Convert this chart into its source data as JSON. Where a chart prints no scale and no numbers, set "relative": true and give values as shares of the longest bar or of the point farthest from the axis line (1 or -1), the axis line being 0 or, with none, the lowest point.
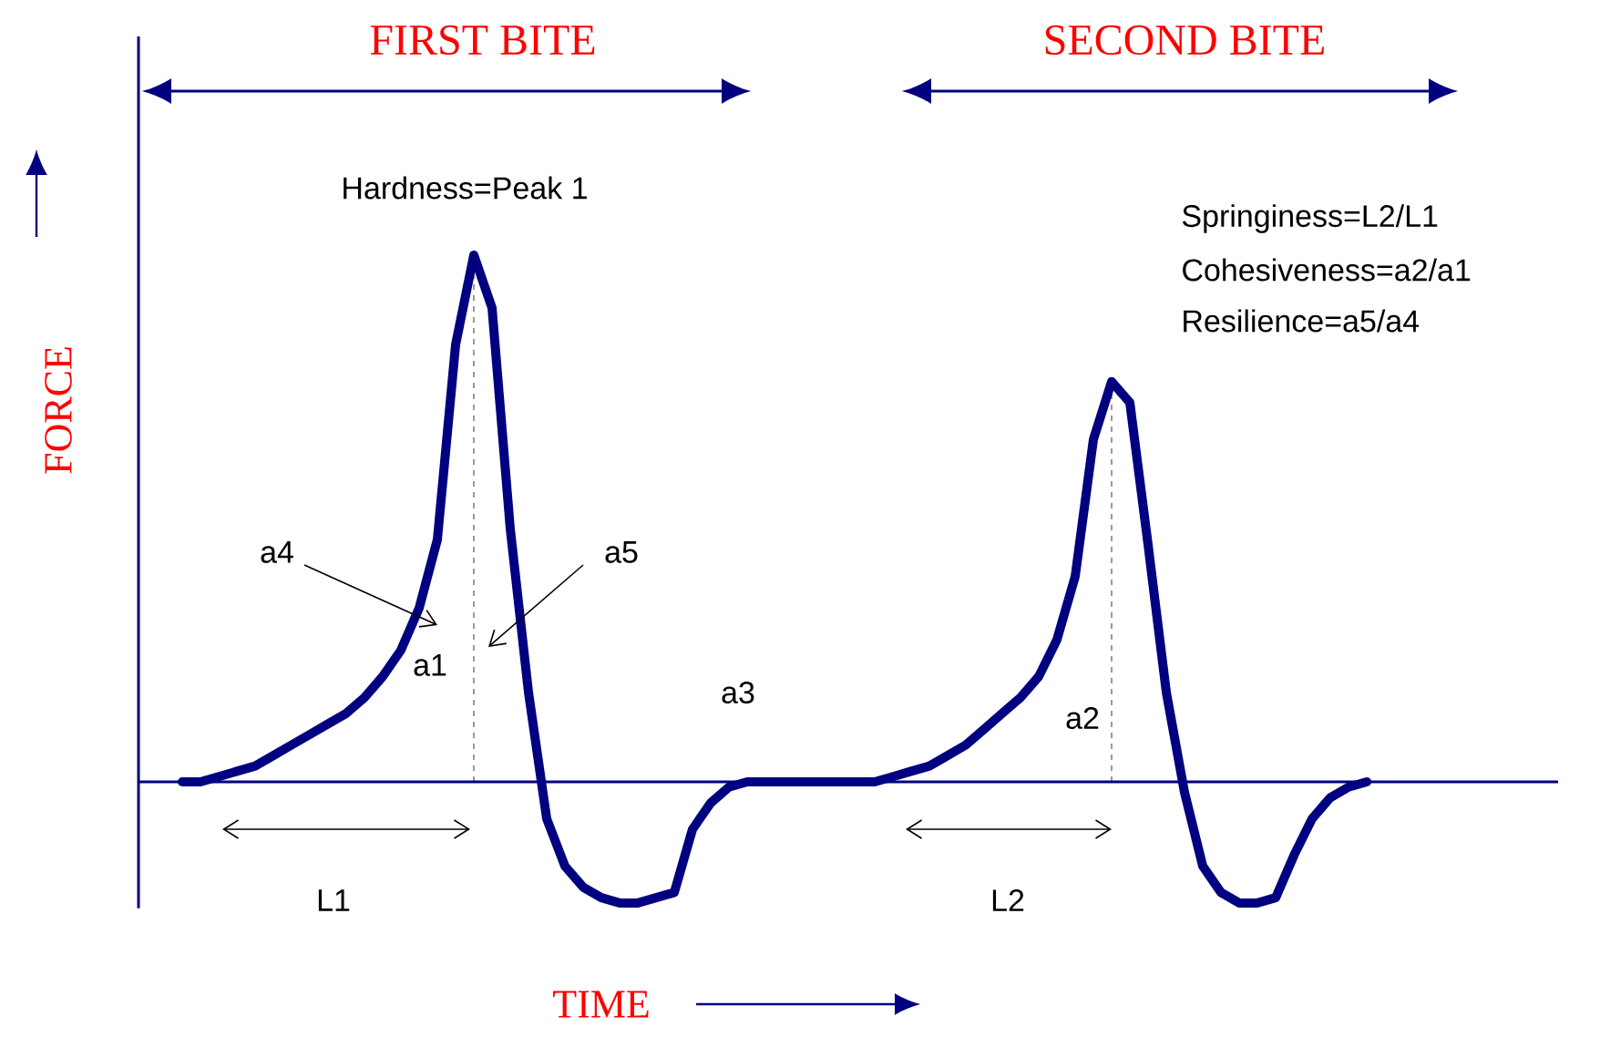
{
  "chart_data": {
    "type": "line",
    "relative": true,
    "xlabel": "TIME",
    "ylabel": "FORCE",
    "categories": [
      null,
      null,
      null,
      null,
      null,
      null,
      null,
      null,
      null,
      null,
      null,
      null,
      null,
      null,
      null,
      null,
      null,
      null,
      null,
      null,
      null,
      null,
      null,
      null,
      null,
      null,
      null,
      null,
      null,
      null,
      null,
      null,
      null,
      null,
      null,
      null,
      null,
      null,
      null,
      null,
      null,
      null,
      null,
      null,
      null,
      null,
      null,
      null,
      null,
      null,
      null,
      null,
      null,
      null,
      null,
      null,
      null,
      null,
      null,
      null,
      null,
      null,
      null,
      null,
      null,
      null
    ],
    "series": [
      {
        "color": "#000080",
        "values": [
          0,
          0,
          0.01,
          0.02,
          0.03,
          0.05,
          0.07,
          0.09,
          0.11,
          0.13,
          0.16,
          0.2,
          0.25,
          0.33,
          0.46,
          0.83,
          1,
          0.9,
          0.48,
          0.17,
          -0.07,
          -0.16,
          -0.2,
          -0.22,
          -0.23,
          -0.23,
          -0.22,
          -0.21,
          -0.09,
          -0.04,
          -0.01,
          0,
          0,
          0,
          0,
          0,
          0,
          0,
          0,
          0.01,
          0.02,
          0.03,
          0.05,
          0.07,
          0.1,
          0.13,
          0.16,
          0.2,
          0.27,
          0.39,
          0.65,
          0.76,
          0.72,
          0.45,
          0.17,
          -0.02,
          -0.16,
          -0.21,
          -0.23,
          -0.23,
          -0.22,
          -0.14,
          -0.07,
          -0.03,
          -0.01,
          0
        ]
      }
    ],
    "ref_lines": [
      {
        "axis": "y",
        "value": 0,
        "color": "#000080",
        "line_style": "solid"
      }
    ],
    "annotations": [
      "FIRST BITE",
      "SECOND BITE",
      "Hardness=Peak  1",
      "Springiness=L2/L1",
      "Cohesiveness=a2/a1",
      "Resilience=a5/a4",
      "a4",
      "a5",
      "a1",
      "a3",
      "a2",
      "L1",
      "L2"
    ]
  }
}
